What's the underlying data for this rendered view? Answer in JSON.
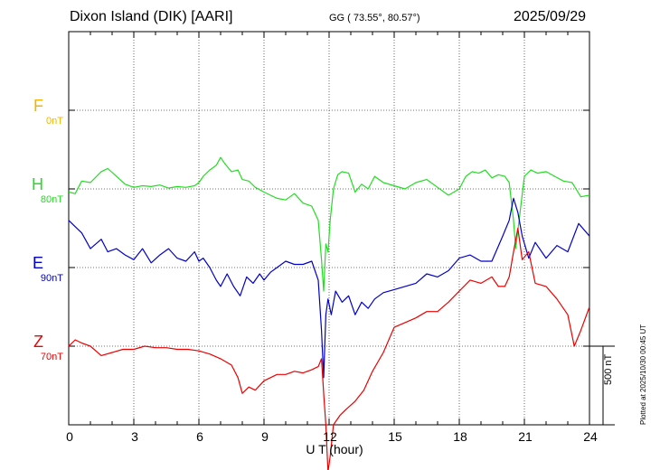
{
  "header": {
    "station": "Dixon Island (DIK)  [AARI]",
    "coords": "GG ( 73.55°,  80.57°)",
    "date": "2025/09/29"
  },
  "components": [
    {
      "letter": "F",
      "baseline": "0nT",
      "color": "#f5b400"
    },
    {
      "letter": "H",
      "baseline": "80nT",
      "color": "#22dd22"
    },
    {
      "letter": "E",
      "baseline": "90nT",
      "color": "#0000cc"
    },
    {
      "letter": "Z",
      "baseline": "70nT",
      "color": "#ee0000"
    }
  ],
  "x_tick_labels": [
    "0",
    "3",
    "6",
    "9",
    "12",
    "15",
    "18",
    "21",
    "24"
  ],
  "x_axis_title": "U T (hour)",
  "scale_bar_label": "500 nT",
  "plotted_note": "Plotted at 2025/10/30 00:45 UT",
  "chart_data": {
    "type": "line",
    "xlim": [
      0,
      24
    ],
    "xlabel": "U T (hour)",
    "grid": true,
    "scale_bar_nT": 500,
    "series": [
      {
        "name": "H",
        "color": "#22dd22",
        "x": [
          0,
          0.3,
          0.6,
          1,
          1.5,
          1.8,
          2.2,
          2.6,
          3,
          3.4,
          3.8,
          4.2,
          4.6,
          5,
          5.4,
          5.8,
          6,
          6.2,
          6.5,
          6.8,
          7,
          7.2,
          7.5,
          7.8,
          8,
          8.3,
          8.6,
          9,
          9.3,
          9.6,
          10,
          10.4,
          10.8,
          11.2,
          11.5,
          11.65,
          11.75,
          11.85,
          11.95,
          12.05,
          12.2,
          12.4,
          12.6,
          12.9,
          13.2,
          13.5,
          13.8,
          14.1,
          14.5,
          15,
          15.5,
          16,
          16.5,
          17,
          17.5,
          18,
          18.3,
          18.6,
          18.9,
          19.2,
          19.5,
          19.8,
          20.1,
          20.3,
          20.5,
          20.6,
          20.8,
          21,
          21.3,
          21.6,
          22,
          22.4,
          22.8,
          23.2,
          23.6,
          24
        ],
        "y": [
          -20,
          -30,
          50,
          40,
          110,
          130,
          80,
          30,
          10,
          20,
          15,
          25,
          5,
          15,
          10,
          20,
          40,
          80,
          120,
          150,
          200,
          160,
          110,
          120,
          60,
          50,
          10,
          -20,
          -40,
          -60,
          -70,
          -30,
          -90,
          -110,
          -200,
          -450,
          -650,
          -350,
          -400,
          -200,
          0,
          90,
          110,
          100,
          -20,
          30,
          0,
          80,
          40,
          20,
          0,
          40,
          60,
          10,
          -40,
          0,
          80,
          110,
          100,
          120,
          70,
          90,
          80,
          40,
          -200,
          -380,
          -150,
          80,
          120,
          100,
          110,
          80,
          50,
          40,
          -50,
          -40
        ]
      },
      {
        "name": "E",
        "color": "#0000cc",
        "x": [
          0,
          0.3,
          0.6,
          1,
          1.5,
          1.8,
          2.2,
          2.6,
          3,
          3.4,
          3.8,
          4.2,
          4.6,
          5,
          5.4,
          5.8,
          6,
          6.2,
          6.5,
          6.8,
          7,
          7.3,
          7.6,
          7.9,
          8.2,
          8.5,
          8.8,
          9,
          9.3,
          9.6,
          10,
          10.4,
          10.8,
          11.2,
          11.5,
          11.65,
          11.75,
          11.85,
          11.95,
          12.1,
          12.3,
          12.6,
          12.9,
          13.2,
          13.5,
          13.8,
          14.1,
          14.5,
          15,
          15.5,
          16,
          16.5,
          17,
          17.5,
          18,
          18.5,
          19,
          19.5,
          20,
          20.3,
          20.5,
          20.7,
          20.9,
          21.2,
          21.5,
          22,
          22.5,
          23,
          23.5,
          24
        ],
        "y": [
          300,
          260,
          220,
          120,
          180,
          100,
          120,
          80,
          50,
          120,
          30,
          80,
          120,
          60,
          40,
          100,
          40,
          60,
          0,
          -80,
          -120,
          -40,
          -120,
          -180,
          -60,
          -100,
          -40,
          -80,
          -30,
          0,
          40,
          20,
          20,
          40,
          -80,
          -400,
          -700,
          -300,
          -200,
          -300,
          -150,
          -220,
          -180,
          -300,
          -220,
          -260,
          -200,
          -160,
          -140,
          -120,
          -100,
          -40,
          -60,
          -20,
          60,
          80,
          40,
          40,
          200,
          300,
          440,
          350,
          200,
          60,
          160,
          60,
          140,
          100,
          280,
          200
        ]
      },
      {
        "name": "Z",
        "color": "#ee0000",
        "x": [
          0,
          0.3,
          0.6,
          1,
          1.5,
          2,
          2.5,
          3,
          3.5,
          4,
          4.5,
          5,
          5.5,
          6,
          6.5,
          7,
          7.5,
          7.8,
          8,
          8.3,
          8.6,
          9,
          9.3,
          9.6,
          10,
          10.4,
          10.8,
          11.2,
          11.5,
          11.65,
          11.75,
          11.85,
          11.95,
          12.05,
          12.2,
          12.5,
          12.8,
          13.2,
          13.6,
          14,
          14.5,
          15,
          15.5,
          16,
          16.5,
          17,
          17.5,
          18,
          18.5,
          19,
          19.5,
          19.8,
          20.1,
          20.3,
          20.5,
          20.7,
          20.9,
          21.2,
          21.5,
          22,
          22.5,
          23,
          23.3,
          23.6,
          24
        ],
        "y": [
          0,
          40,
          20,
          0,
          -60,
          -40,
          -20,
          -20,
          0,
          -10,
          -10,
          -20,
          -20,
          -30,
          -50,
          -80,
          -120,
          -200,
          -300,
          -260,
          -280,
          -220,
          -200,
          -180,
          -180,
          -160,
          -170,
          -150,
          -130,
          -80,
          -300,
          -500,
          -800,
          -700,
          -500,
          -440,
          -400,
          -350,
          -280,
          -160,
          -40,
          120,
          150,
          180,
          220,
          220,
          280,
          350,
          420,
          400,
          440,
          380,
          380,
          440,
          600,
          750,
          550,
          600,
          400,
          380,
          300,
          200,
          0,
          100,
          250
        ]
      }
    ]
  }
}
